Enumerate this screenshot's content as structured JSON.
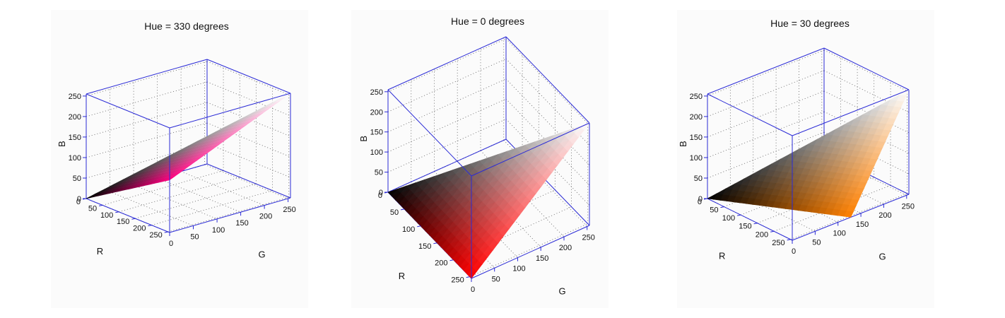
{
  "chart_data": [
    {
      "type": "surface3d",
      "title": "Hue = 330 degrees",
      "xlabel": "R",
      "ylabel": "G",
      "zlabel": "B",
      "xlim": [
        0,
        255
      ],
      "ylim": [
        0,
        255
      ],
      "zlim": [
        0,
        255
      ],
      "xticks": [
        "0",
        "50",
        "100",
        "150",
        "200",
        "250"
      ],
      "yticks": [
        "0",
        "50",
        "100",
        "150",
        "200",
        "250"
      ],
      "zticks": [
        "0",
        "50",
        "100",
        "150",
        "200",
        "250"
      ],
      "grid": true,
      "surface_vertices": {
        "black": [
          0,
          0,
          0
        ],
        "hue": [
          255,
          0,
          128
        ],
        "white": [
          255,
          255,
          255
        ]
      },
      "colors": {
        "black": "#000000",
        "hue": "#ff0080",
        "white": "#ffffff"
      }
    },
    {
      "type": "surface3d",
      "title": "Hue = 0 degrees",
      "xlabel": "R",
      "ylabel": "G",
      "zlabel": "B",
      "xlim": [
        0,
        255
      ],
      "ylim": [
        0,
        255
      ],
      "zlim": [
        0,
        255
      ],
      "xticks": [
        "0",
        "50",
        "100",
        "150",
        "200",
        "250"
      ],
      "yticks": [
        "0",
        "50",
        "100",
        "150",
        "200",
        "250"
      ],
      "zticks": [
        "0",
        "50",
        "100",
        "150",
        "200",
        "250"
      ],
      "grid": true,
      "surface_vertices": {
        "black": [
          0,
          0,
          0
        ],
        "hue": [
          255,
          0,
          0
        ],
        "white": [
          255,
          255,
          255
        ]
      },
      "colors": {
        "black": "#000000",
        "hue": "#ff0000",
        "white": "#ffffff"
      }
    },
    {
      "type": "surface3d",
      "title": "Hue = 30 degrees",
      "xlabel": "R",
      "ylabel": "G",
      "zlabel": "B",
      "xlim": [
        0,
        255
      ],
      "ylim": [
        0,
        255
      ],
      "zlim": [
        0,
        255
      ],
      "xticks": [
        "0",
        "50",
        "100",
        "150",
        "200",
        "250"
      ],
      "yticks": [
        "0",
        "50",
        "100",
        "150",
        "200",
        "250"
      ],
      "zticks": [
        "0",
        "50",
        "100",
        "150",
        "200",
        "250"
      ],
      "grid": true,
      "surface_vertices": {
        "black": [
          0,
          0,
          0
        ],
        "hue": [
          255,
          128,
          0
        ],
        "white": [
          255,
          255,
          255
        ]
      },
      "colors": {
        "black": "#000000",
        "hue": "#ff8000",
        "white": "#ffffff"
      }
    }
  ]
}
